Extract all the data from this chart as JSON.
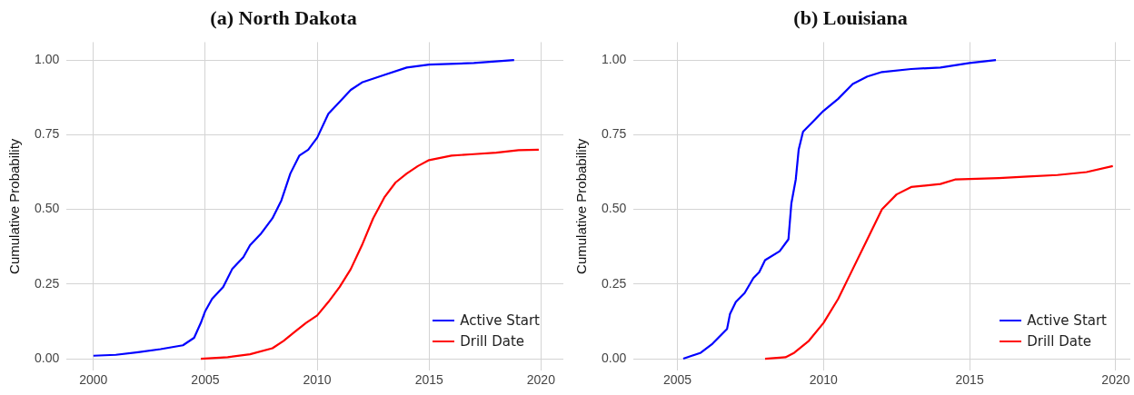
{
  "chart_data": [
    {
      "type": "line",
      "title": "(a) North Dakota",
      "ylabel": "Cumulative Probability",
      "xlim": [
        1998.8,
        2021
      ],
      "xticks": [
        2000,
        2005,
        2010,
        2015,
        2020
      ],
      "ylim": [
        -0.04,
        1.06
      ],
      "yticks": [
        {
          "value": 0,
          "label": "0.00"
        },
        {
          "value": 0.25,
          "label": "0.25"
        },
        {
          "value": 0.5,
          "label": "0.50"
        },
        {
          "value": 0.75,
          "label": "0.75"
        },
        {
          "value": 1,
          "label": "1.00"
        }
      ],
      "grid": true,
      "legend": "bottom right",
      "marker": "none",
      "line_style": "solid",
      "series": [
        {
          "name": "Active Start",
          "color": "#0000ff",
          "x": [
            2000,
            2001,
            2002,
            2003,
            2004,
            2004.5,
            2004.8,
            2005,
            2005.3,
            2005.8,
            2006.2,
            2006.7,
            2007,
            2007.5,
            2008,
            2008.4,
            2008.8,
            2009.2,
            2009.6,
            2010,
            2010.5,
            2011,
            2011.5,
            2012,
            2013,
            2014,
            2015,
            2017,
            2018.8
          ],
          "values": [
            0.01,
            0.013,
            0.022,
            0.032,
            0.045,
            0.07,
            0.12,
            0.16,
            0.2,
            0.24,
            0.3,
            0.34,
            0.38,
            0.42,
            0.47,
            0.53,
            0.62,
            0.68,
            0.7,
            0.74,
            0.82,
            0.86,
            0.9,
            0.925,
            0.95,
            0.975,
            0.985,
            0.99,
            1.0
          ]
        },
        {
          "name": "Drill Date",
          "color": "#ff0000",
          "x": [
            2004.8,
            2006,
            2007,
            2008,
            2008.5,
            2009,
            2009.5,
            2010,
            2010.5,
            2011,
            2011.5,
            2012,
            2012.5,
            2013,
            2013.5,
            2014,
            2014.5,
            2015,
            2016,
            2017,
            2018,
            2019,
            2019.9
          ],
          "values": [
            0,
            0.005,
            0.015,
            0.035,
            0.06,
            0.09,
            0.12,
            0.145,
            0.19,
            0.24,
            0.3,
            0.38,
            0.47,
            0.54,
            0.59,
            0.62,
            0.645,
            0.665,
            0.68,
            0.685,
            0.69,
            0.698,
            0.7
          ]
        }
      ]
    },
    {
      "type": "line",
      "title": "(b) Louisiana",
      "ylabel": "Cumulative Probability",
      "xlim": [
        2003.5,
        2020.5
      ],
      "xticks": [
        2005,
        2010,
        2015,
        2020
      ],
      "ylim": [
        -0.04,
        1.06
      ],
      "yticks": [
        {
          "value": 0,
          "label": "0.00"
        },
        {
          "value": 0.25,
          "label": "0.25"
        },
        {
          "value": 0.5,
          "label": "0.50"
        },
        {
          "value": 0.75,
          "label": "0.75"
        },
        {
          "value": 1,
          "label": "1.00"
        }
      ],
      "grid": true,
      "legend": "bottom right",
      "marker": "none",
      "line_style": "solid",
      "series": [
        {
          "name": "Active Start",
          "color": "#0000ff",
          "x": [
            2005.2,
            2005.8,
            2006.2,
            2006.4,
            2006.7,
            2006.8,
            2007,
            2007.3,
            2007.6,
            2007.8,
            2008,
            2008.5,
            2008.8,
            2008.9,
            2009.05,
            2009.15,
            2009.3,
            2009.6,
            2010,
            2010.5,
            2011,
            2011.5,
            2012,
            2013,
            2014,
            2015,
            2015.9
          ],
          "values": [
            0,
            0.02,
            0.05,
            0.07,
            0.1,
            0.15,
            0.19,
            0.22,
            0.27,
            0.29,
            0.33,
            0.36,
            0.4,
            0.52,
            0.6,
            0.7,
            0.76,
            0.79,
            0.83,
            0.87,
            0.92,
            0.945,
            0.96,
            0.97,
            0.975,
            0.99,
            1.0
          ]
        },
        {
          "name": "Drill Date",
          "color": "#ff0000",
          "x": [
            2008,
            2008.7,
            2009,
            2009.5,
            2010,
            2010.5,
            2011,
            2011.5,
            2012,
            2012.5,
            2013,
            2014,
            2014.5,
            2016,
            2017,
            2018,
            2019,
            2019.9
          ],
          "values": [
            0,
            0.005,
            0.02,
            0.06,
            0.12,
            0.2,
            0.3,
            0.4,
            0.5,
            0.55,
            0.575,
            0.585,
            0.6,
            0.605,
            0.61,
            0.615,
            0.625,
            0.645
          ]
        }
      ]
    }
  ]
}
